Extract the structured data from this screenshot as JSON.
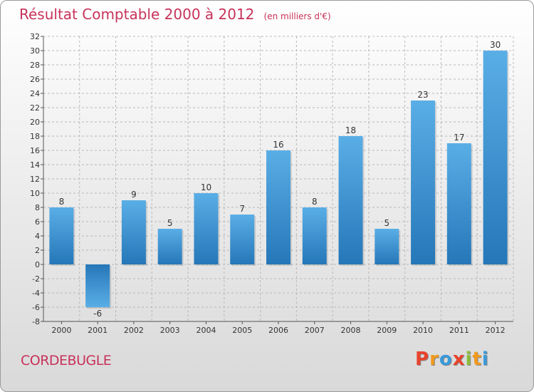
{
  "chart_data": {
    "type": "bar",
    "title": "Résultat Comptable 2000 à 2012",
    "subtitle": "(en milliers d'€)",
    "categories": [
      "2000",
      "2001",
      "2002",
      "2003",
      "2004",
      "2005",
      "2006",
      "2007",
      "2008",
      "2009",
      "2010",
      "2011",
      "2012"
    ],
    "values": [
      8,
      -6,
      9,
      5,
      10,
      7,
      16,
      8,
      18,
      5,
      23,
      17,
      30
    ],
    "ylim": [
      -8,
      32
    ],
    "ytick_step": 2,
    "grid": true,
    "xlabel": "",
    "ylabel": ""
  },
  "commune": "CORDEBUGLE",
  "logo": {
    "letters": [
      "P",
      "r",
      "o",
      "x",
      "i",
      "t",
      "i"
    ],
    "colors": [
      "#e8432c",
      "#f29a1d",
      "#3a9ad9",
      "#e8432c",
      "#8bbd3a",
      "#f29a1d",
      "#3a9ad9"
    ]
  },
  "colors": {
    "bar_top": "#5aaee6",
    "bar_bottom": "#2577b8",
    "grid": "#b8b8b8",
    "title": "#c8325a"
  }
}
